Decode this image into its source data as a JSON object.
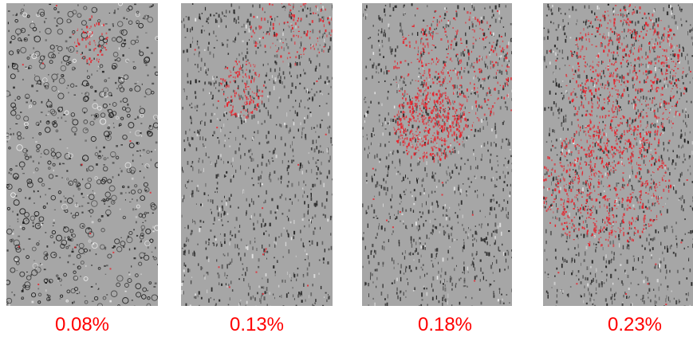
{
  "panels": [
    {
      "label": "0.08%",
      "red_density": 0.03
    },
    {
      "label": "0.13%",
      "red_density": 0.12
    },
    {
      "label": "0.18%",
      "red_density": 0.35
    },
    {
      "label": "0.23%",
      "red_density": 0.6
    }
  ],
  "colors": {
    "background": "#a6a6a6",
    "label": "#ff0000",
    "damage": "#e8202a",
    "speckle_dark": "#1a1a1a",
    "speckle_light": "#f0f0f0"
  }
}
